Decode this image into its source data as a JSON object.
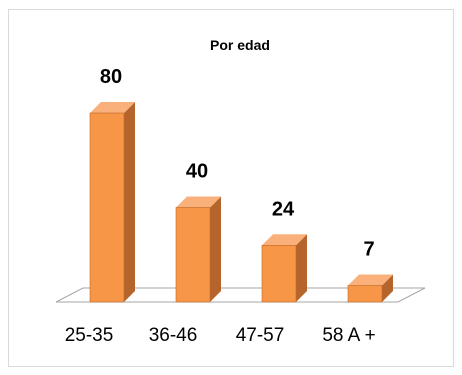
{
  "chart_data": {
    "type": "bar",
    "title": "Por edad",
    "categories": [
      "25-35",
      "36-46",
      "47-57",
      "58 A +"
    ],
    "values": [
      80,
      40,
      24,
      7
    ],
    "data_labels": [
      "80",
      "40",
      "24",
      "7"
    ],
    "xlabel": "",
    "ylabel": "",
    "ylim": [
      0,
      80
    ],
    "grid": false,
    "legend": "none",
    "three_d": true,
    "colors": {
      "bar_front": "#f79646",
      "bar_top": "#fab07a",
      "bar_side": "#b5652b",
      "bar_edge": "#c0692a",
      "floor": "#ffffff",
      "floor_edge": "#a6a6a6",
      "frame": "#d9d9d9"
    }
  }
}
